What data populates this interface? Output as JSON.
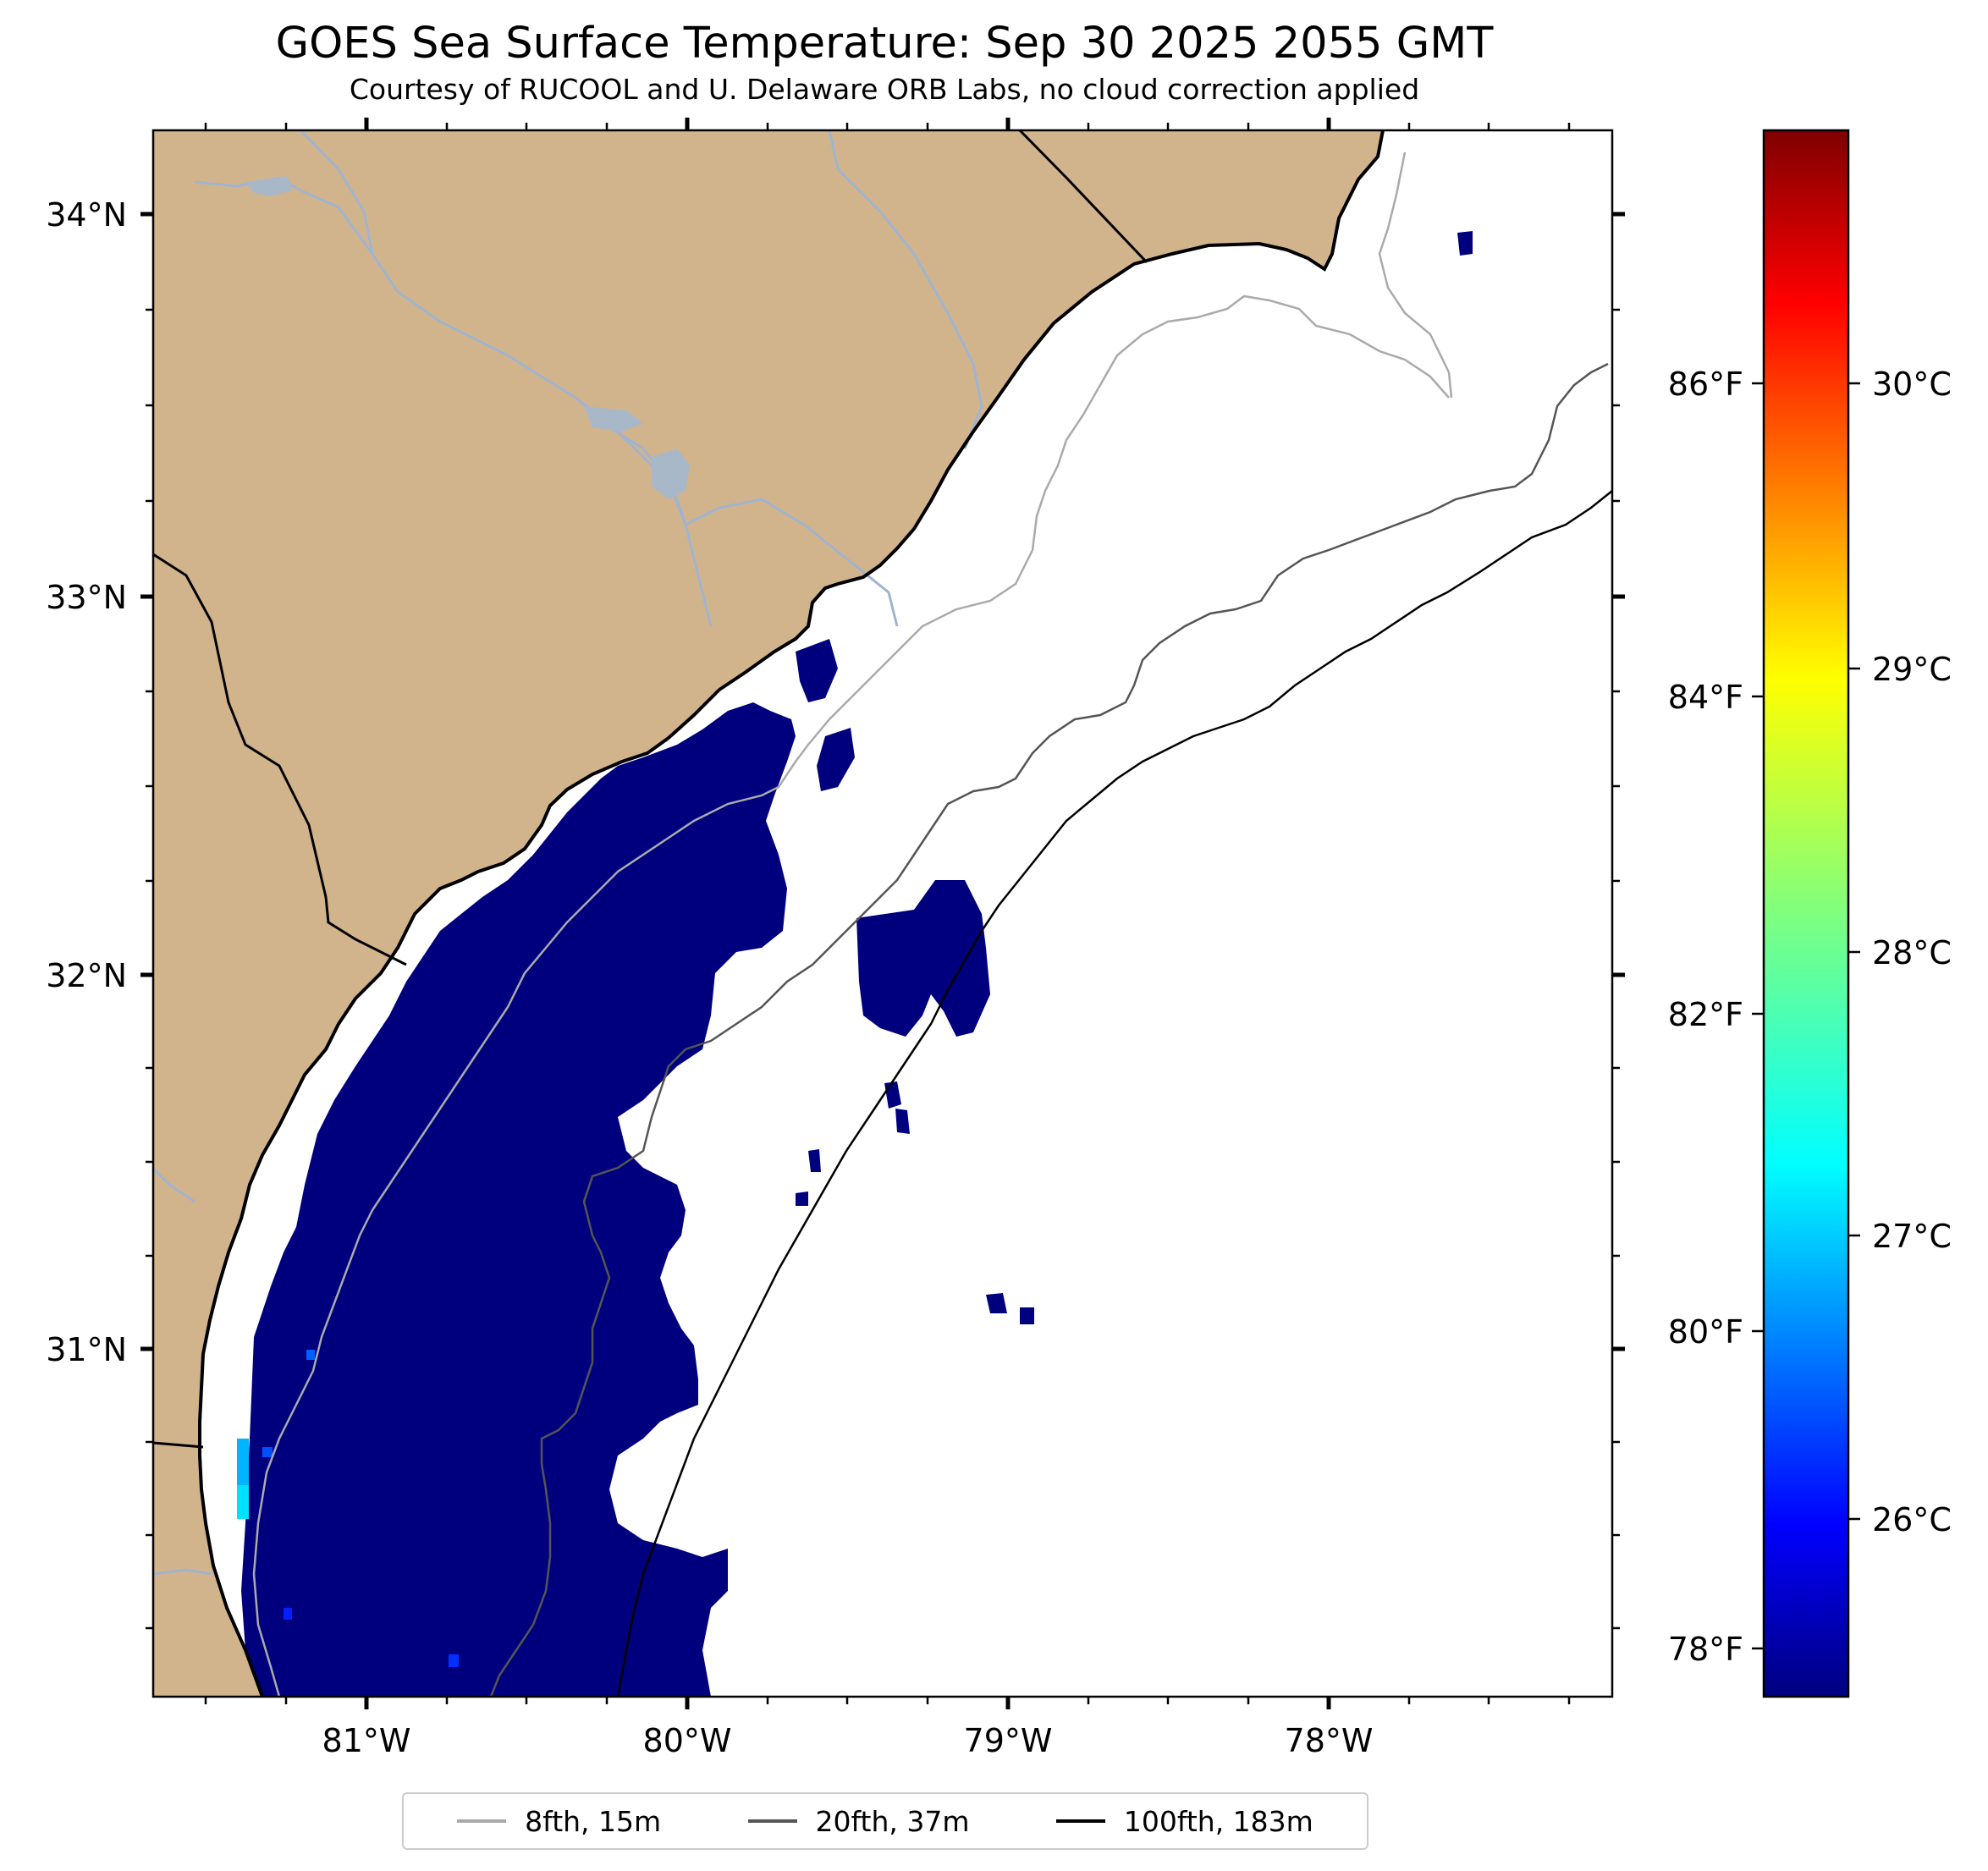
{
  "title": "GOES Sea Surface Temperature: Sep 30 2025 2055 GMT",
  "subtitle": "Courtesy of RUCOOL and U. Delaware ORB Labs, no cloud correction applied",
  "map": {
    "land_color": "#d2b48c",
    "water_color": "#ffffff",
    "river_color": "#a0b4d0",
    "sst_low_color": "#00007f",
    "lat_labels": [
      "34°N",
      "33°N",
      "32°N",
      "31°N"
    ],
    "lon_labels": [
      "81°W",
      "80°W",
      "79°W",
      "78°W"
    ],
    "lat_extent": [
      30.1,
      34.2
    ],
    "lon_extent": [
      -81.67,
      -77.12
    ]
  },
  "colorbar": {
    "colormap": "jet",
    "celsius_labels": [
      "30°C",
      "29°C",
      "28°C",
      "27°C",
      "26°C"
    ],
    "fahrenheit_labels": [
      "86°F",
      "84°F",
      "82°F",
      "80°F",
      "78°F"
    ]
  },
  "legend": {
    "items": [
      {
        "label": "8fth, 15m",
        "color": "#aaaaaa"
      },
      {
        "label": "20fth, 37m",
        "color": "#555555"
      },
      {
        "label": "100fth, 183m",
        "color": "#000000"
      }
    ]
  }
}
